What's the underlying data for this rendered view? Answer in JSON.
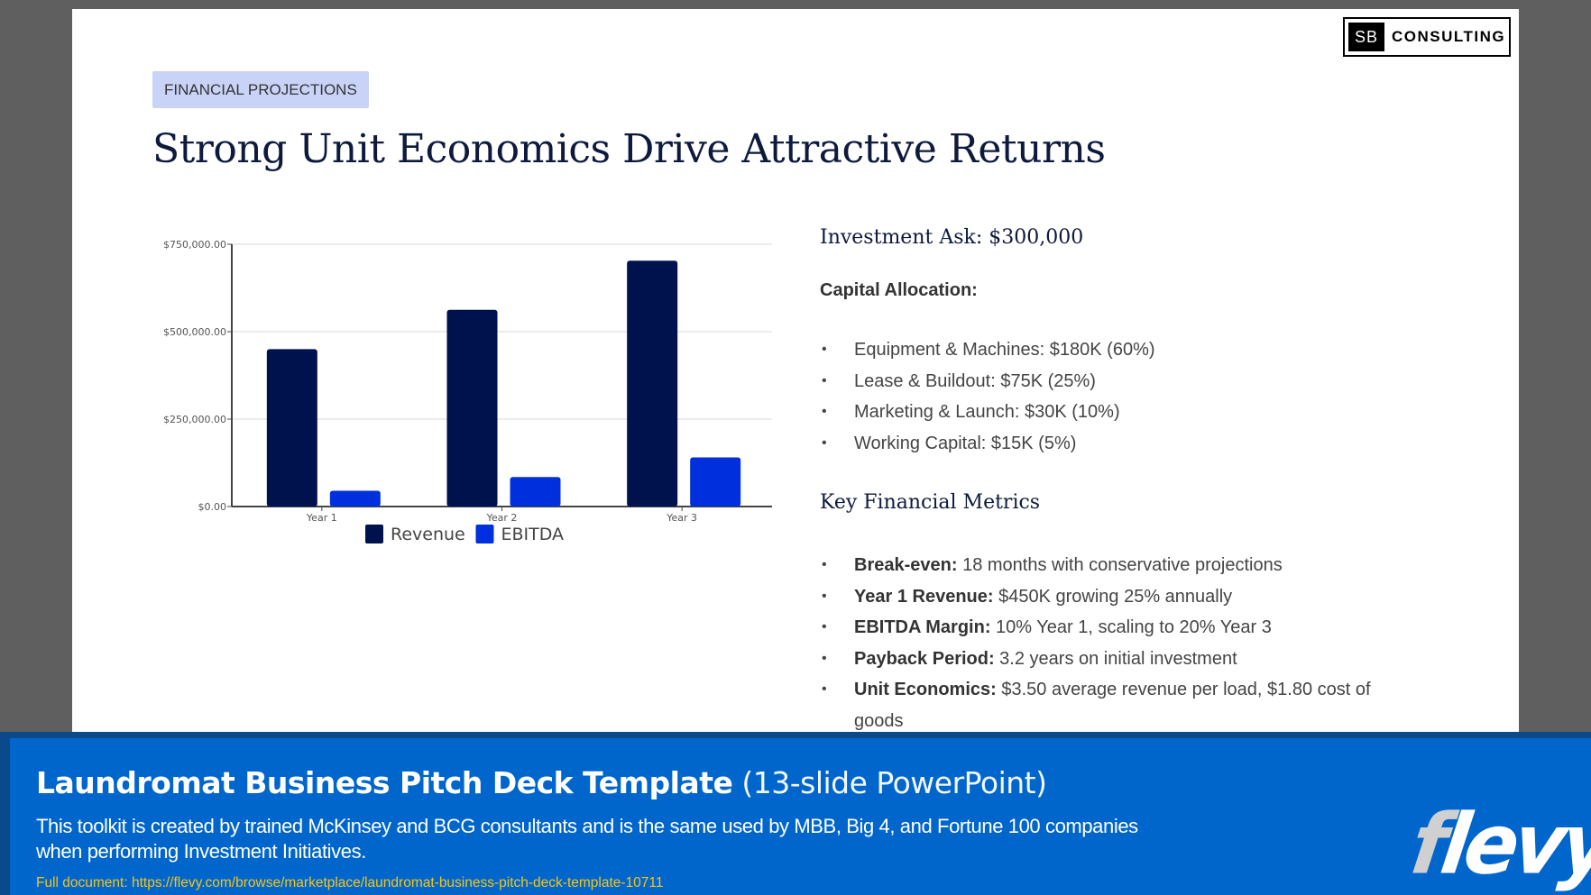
{
  "slide": {
    "logo": {
      "box": "SB",
      "text": "CONSULTING"
    },
    "tag": "FINANCIAL PROJECTIONS",
    "title": "Strong Unit Economics Drive Attractive Returns",
    "investment_ask": "Investment Ask: $300,000",
    "capital_allocation_heading": "Capital Allocation:",
    "capital_allocation": [
      "Equipment & Machines: $180K (60%)",
      "Lease & Buildout: $75K (25%)",
      "Marketing & Launch: $30K (10%)",
      "Working Capital: $15K (5%)"
    ],
    "metrics_heading": "Key Financial Metrics",
    "metrics": [
      {
        "label": "Break-even:",
        "text": " 18 months with conservative projections"
      },
      {
        "label": "Year 1 Revenue:",
        "text": " $450K growing 25% annually"
      },
      {
        "label": "EBITDA Margin:",
        "text": " 10% Year 1, scaling to 20% Year 3"
      },
      {
        "label": "Payback Period:",
        "text": " 3.2 years on initial investment"
      },
      {
        "label": "Unit Economics:",
        "text": " $3.50 average revenue per load, $1.80 cost of goods"
      }
    ]
  },
  "chart_data": {
    "type": "bar",
    "categories": [
      "Year 1",
      "Year 2",
      "Year 3"
    ],
    "series": [
      {
        "name": "Revenue",
        "values": [
          450000,
          562500,
          703125
        ],
        "color": "#00124d"
      },
      {
        "name": "EBITDA",
        "values": [
          45000,
          84375,
          140625
        ],
        "color": "#0030dd"
      }
    ],
    "yticks": [
      "$0.00",
      "$250,000.00",
      "$500,000.00",
      "$750,000.00"
    ],
    "ytick_values": [
      0,
      250000,
      500000,
      750000
    ],
    "ylim": [
      0,
      750000
    ],
    "grid": true,
    "legend": "bottom"
  },
  "banner": {
    "title_bold": "Laundromat Business Pitch Deck Template",
    "title_light": " (13-slide PowerPoint)",
    "description": "This toolkit is created by trained McKinsey and BCG consultants and is the same used by MBB, Big 4, and Fortune 100 companies when performing Investment Initiatives.",
    "link": "Full document: https://flevy.com/browse/marketplace/laundromat-business-pitch-deck-template-10711",
    "brand": "flevy"
  }
}
